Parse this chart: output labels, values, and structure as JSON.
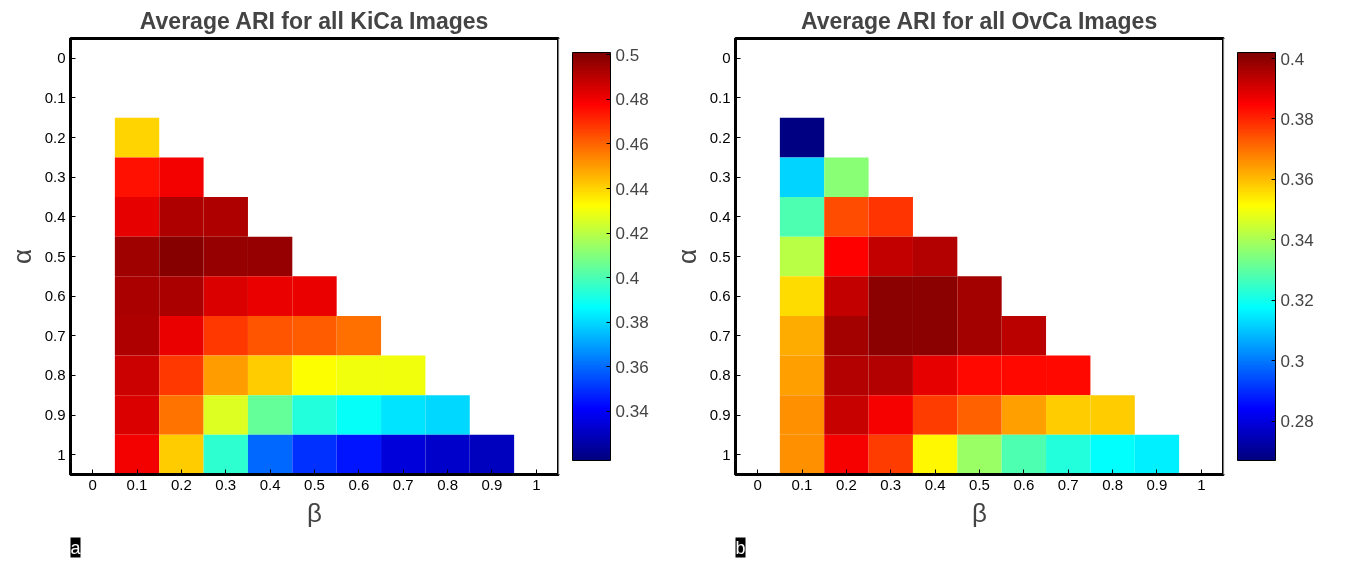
{
  "chart_data": [
    {
      "type": "heatmap",
      "title": "Average ARI for all KiCa Images",
      "xlabel": "β",
      "ylabel": "α",
      "categories": [
        "0",
        "0.1",
        "0.2",
        "0.3",
        "0.4",
        "0.5",
        "0.6",
        "0.7",
        "0.8",
        "0.9",
        "1"
      ],
      "y_categories": [
        "0",
        "0.1",
        "0.2",
        "0.3",
        "0.4",
        "0.5",
        "0.6",
        "0.7",
        "0.8",
        "0.9",
        "1"
      ],
      "cells": [
        [
          null,
          null,
          null,
          null,
          null,
          null,
          null,
          null,
          null,
          null,
          null
        ],
        [
          null,
          null,
          null,
          null,
          null,
          null,
          null,
          null,
          null,
          null,
          null
        ],
        [
          null,
          0.44,
          null,
          null,
          null,
          null,
          null,
          null,
          null,
          null,
          null
        ],
        [
          null,
          0.475,
          0.48,
          null,
          null,
          null,
          null,
          null,
          null,
          null,
          null
        ],
        [
          null,
          0.482,
          0.492,
          0.492,
          null,
          null,
          null,
          null,
          null,
          null,
          null
        ],
        [
          null,
          0.495,
          0.499,
          0.496,
          0.496,
          null,
          null,
          null,
          null,
          null,
          null
        ],
        [
          null,
          0.493,
          0.493,
          0.484,
          0.481,
          0.481,
          null,
          null,
          null,
          null,
          null
        ],
        [
          null,
          0.492,
          0.481,
          0.468,
          0.463,
          0.461,
          0.458,
          null,
          null,
          null,
          null
        ],
        [
          null,
          0.487,
          0.468,
          0.45,
          0.441,
          0.432,
          0.43,
          0.43,
          null,
          null,
          null
        ],
        [
          null,
          0.484,
          0.457,
          0.426,
          0.405,
          0.393,
          0.388,
          0.382,
          0.38,
          null,
          null
        ],
        [
          null,
          0.48,
          0.441,
          0.395,
          0.36,
          0.35,
          0.345,
          0.335,
          0.332,
          0.33,
          null
        ]
      ],
      "clim": [
        0.318,
        0.501
      ],
      "cticks": [
        0.34,
        0.36,
        0.38,
        0.4,
        0.42,
        0.44,
        0.46,
        0.48,
        0.5
      ],
      "annotations": [
        "a"
      ]
    },
    {
      "type": "heatmap",
      "title": "Average ARI for all OvCa Images",
      "xlabel": "β",
      "ylabel": "α",
      "categories": [
        "0",
        "0.1",
        "0.2",
        "0.3",
        "0.4",
        "0.5",
        "0.6",
        "0.7",
        "0.8",
        "0.9",
        "1"
      ],
      "y_categories": [
        "0",
        "0.1",
        "0.2",
        "0.3",
        "0.4",
        "0.5",
        "0.6",
        "0.7",
        "0.8",
        "0.9",
        "1"
      ],
      "cells": [
        [
          null,
          null,
          null,
          null,
          null,
          null,
          null,
          null,
          null,
          null,
          null
        ],
        [
          null,
          null,
          null,
          null,
          null,
          null,
          null,
          null,
          null,
          null,
          null
        ],
        [
          null,
          0.268,
          null,
          null,
          null,
          null,
          null,
          null,
          null,
          null,
          null
        ],
        [
          null,
          0.312,
          0.336,
          null,
          null,
          null,
          null,
          null,
          null,
          null,
          null
        ],
        [
          null,
          0.328,
          0.375,
          0.378,
          null,
          null,
          null,
          null,
          null,
          null,
          null
        ],
        [
          null,
          0.342,
          0.385,
          0.393,
          0.395,
          null,
          null,
          null,
          null,
          null,
          null
        ],
        [
          null,
          0.356,
          0.393,
          0.4,
          0.4,
          0.397,
          null,
          null,
          null,
          null,
          null
        ],
        [
          null,
          0.362,
          0.397,
          0.4,
          0.4,
          0.397,
          0.394,
          null,
          null,
          null,
          null
        ],
        [
          null,
          0.364,
          0.395,
          0.395,
          0.388,
          0.384,
          0.384,
          0.384,
          null,
          null,
          null
        ],
        [
          null,
          0.366,
          0.392,
          0.386,
          0.377,
          0.372,
          0.364,
          0.358,
          0.358,
          null,
          null
        ],
        [
          null,
          0.366,
          0.386,
          0.377,
          0.352,
          0.338,
          0.328,
          0.322,
          0.318,
          0.316,
          null
        ]
      ],
      "clim": [
        0.267,
        0.402
      ],
      "cticks": [
        0.28,
        0.3,
        0.32,
        0.34,
        0.36,
        0.38,
        0.4
      ],
      "annotations": [
        "b"
      ]
    }
  ]
}
